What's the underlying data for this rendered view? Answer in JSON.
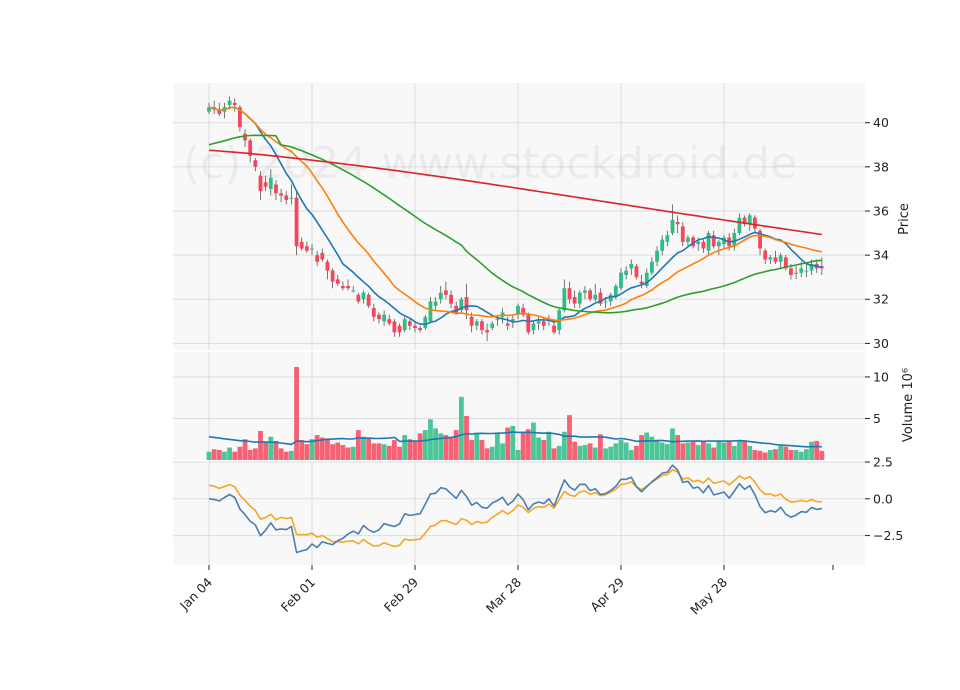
{
  "watermark": "(c) 2024 www.stockdroid.de",
  "colors": {
    "up": "#2ebd85",
    "down": "#f6465d",
    "ma_short": "#1f77b4",
    "ma_mid": "#ff7f0e",
    "ma_long": "#2ca02c",
    "ma_200": "#d62728",
    "volume_ma": "#1f77b4",
    "osc1": "#4a7eb0",
    "osc2": "#f5a623",
    "panel_bg": "#f8f8f8",
    "grid": "#dddddd"
  },
  "chart_data": {
    "type": "candlestick",
    "x_tick_labels": [
      "Jan 04",
      "Feb 01",
      "Feb 29",
      "Mar 28",
      "Apr 29",
      "May 28"
    ],
    "x_tick_index": [
      0,
      20,
      40,
      60,
      80,
      100
    ],
    "price_panel": {
      "ylabel": "Price",
      "ylim": [
        29.7,
        41.8
      ],
      "yticks": [
        30,
        32,
        34,
        36,
        38,
        40
      ],
      "ohlc": [
        [
          40.5,
          40.9,
          40.4,
          40.7
        ],
        [
          40.7,
          41.0,
          40.4,
          40.6
        ],
        [
          40.6,
          40.9,
          40.3,
          40.4
        ],
        [
          40.5,
          40.9,
          40.2,
          40.7
        ],
        [
          40.8,
          41.2,
          40.6,
          41.0
        ],
        [
          40.9,
          41.1,
          40.5,
          40.8
        ],
        [
          40.7,
          40.8,
          39.6,
          39.8
        ],
        [
          39.5,
          39.7,
          38.9,
          39.2
        ],
        [
          39.2,
          39.3,
          38.2,
          38.5
        ],
        [
          38.3,
          38.4,
          37.8,
          38.0
        ],
        [
          37.6,
          37.8,
          36.5,
          36.9
        ],
        [
          37.3,
          37.6,
          36.9,
          37.1
        ],
        [
          37.0,
          37.9,
          36.7,
          37.5
        ],
        [
          37.2,
          37.4,
          36.5,
          36.8
        ],
        [
          36.8,
          37.0,
          36.4,
          36.7
        ],
        [
          36.7,
          36.9,
          36.3,
          36.5
        ],
        [
          36.6,
          37.2,
          36.3,
          36.6
        ],
        [
          36.6,
          36.9,
          34.0,
          34.4
        ],
        [
          34.6,
          34.8,
          34.2,
          34.3
        ],
        [
          34.4,
          34.6,
          34.1,
          34.2
        ],
        [
          34.3,
          34.5,
          34.0,
          34.3
        ],
        [
          34.0,
          34.2,
          33.5,
          33.7
        ],
        [
          34.1,
          34.3,
          33.7,
          33.8
        ],
        [
          33.7,
          33.8,
          32.9,
          33.3
        ],
        [
          33.3,
          33.4,
          32.5,
          32.8
        ],
        [
          32.9,
          33.1,
          32.6,
          32.7
        ],
        [
          32.6,
          32.8,
          32.4,
          32.5
        ],
        [
          32.6,
          32.9,
          32.4,
          32.5
        ],
        [
          32.4,
          32.6,
          32.3,
          32.4
        ],
        [
          32.2,
          32.3,
          31.8,
          31.9
        ],
        [
          32.0,
          32.4,
          31.8,
          32.3
        ],
        [
          32.2,
          32.3,
          31.6,
          31.7
        ],
        [
          31.6,
          31.8,
          31.0,
          31.2
        ],
        [
          31.3,
          31.4,
          30.9,
          31.1
        ],
        [
          31.0,
          31.5,
          30.8,
          31.3
        ],
        [
          31.1,
          31.3,
          30.8,
          30.9
        ],
        [
          31.0,
          31.1,
          30.3,
          30.5
        ],
        [
          30.8,
          30.9,
          30.3,
          30.5
        ],
        [
          30.6,
          31.2,
          30.5,
          31.1
        ],
        [
          31.0,
          31.1,
          30.6,
          30.8
        ],
        [
          30.8,
          31.0,
          30.5,
          30.7
        ],
        [
          30.7,
          30.8,
          30.5,
          30.6
        ],
        [
          30.7,
          31.3,
          30.6,
          31.2
        ],
        [
          31.0,
          32.1,
          30.9,
          31.9
        ],
        [
          31.7,
          32.1,
          31.5,
          31.9
        ],
        [
          32.0,
          32.6,
          31.8,
          32.3
        ],
        [
          32.4,
          32.8,
          32.0,
          32.2
        ],
        [
          32.2,
          32.4,
          31.6,
          31.8
        ],
        [
          31.7,
          31.9,
          31.3,
          31.4
        ],
        [
          31.5,
          32.1,
          31.4,
          32.0
        ],
        [
          32.1,
          32.7,
          31.1,
          31.5
        ],
        [
          31.2,
          31.4,
          30.5,
          30.8
        ],
        [
          30.8,
          31.1,
          30.6,
          31.0
        ],
        [
          31.0,
          31.1,
          30.4,
          30.6
        ],
        [
          30.6,
          30.9,
          30.1,
          30.5
        ],
        [
          30.7,
          31.0,
          30.6,
          30.9
        ],
        [
          31.1,
          31.3,
          30.8,
          31.1
        ],
        [
          31.2,
          31.6,
          30.9,
          31.4
        ],
        [
          30.9,
          31.2,
          30.6,
          30.8
        ],
        [
          31.0,
          31.3,
          30.7,
          31.1
        ],
        [
          31.3,
          31.8,
          31.1,
          31.7
        ],
        [
          31.6,
          31.8,
          31.2,
          31.3
        ],
        [
          31.3,
          31.4,
          30.4,
          30.5
        ],
        [
          30.6,
          31.0,
          30.4,
          30.9
        ],
        [
          30.9,
          31.2,
          30.6,
          31.0
        ],
        [
          31.0,
          31.2,
          30.6,
          30.8
        ],
        [
          31.0,
          31.3,
          30.8,
          31.1
        ],
        [
          30.8,
          31.1,
          30.4,
          30.5
        ],
        [
          30.6,
          31.6,
          30.4,
          31.5
        ],
        [
          31.5,
          32.9,
          31.4,
          32.5
        ],
        [
          32.5,
          32.8,
          31.8,
          32.0
        ],
        [
          32.1,
          32.4,
          31.6,
          31.8
        ],
        [
          31.8,
          32.4,
          31.6,
          32.3
        ],
        [
          32.3,
          32.6,
          32.0,
          32.4
        ],
        [
          32.4,
          32.5,
          31.9,
          32.0
        ],
        [
          32.0,
          32.7,
          31.9,
          32.2
        ],
        [
          32.3,
          32.5,
          31.7,
          31.8
        ],
        [
          31.9,
          32.1,
          31.6,
          31.9
        ],
        [
          31.9,
          32.3,
          31.7,
          32.2
        ],
        [
          32.1,
          32.7,
          32.0,
          32.6
        ],
        [
          32.5,
          33.4,
          32.4,
          33.2
        ],
        [
          33.1,
          33.5,
          32.9,
          33.3
        ],
        [
          33.4,
          33.8,
          33.1,
          33.6
        ],
        [
          33.5,
          33.6,
          32.9,
          33.0
        ],
        [
          32.8,
          33.1,
          32.5,
          32.7
        ],
        [
          32.6,
          33.4,
          32.5,
          33.2
        ],
        [
          33.2,
          33.9,
          33.1,
          33.7
        ],
        [
          33.7,
          34.4,
          33.5,
          34.2
        ],
        [
          34.2,
          34.9,
          34.0,
          34.7
        ],
        [
          34.6,
          35.1,
          34.4,
          34.9
        ],
        [
          35.0,
          36.3,
          34.9,
          35.6
        ],
        [
          35.5,
          35.8,
          35.0,
          35.4
        ],
        [
          35.3,
          35.5,
          34.4,
          34.6
        ],
        [
          34.6,
          34.9,
          34.4,
          34.8
        ],
        [
          34.8,
          34.9,
          34.3,
          34.4
        ],
        [
          34.5,
          34.8,
          34.2,
          34.6
        ],
        [
          34.6,
          34.7,
          34.1,
          34.3
        ],
        [
          34.2,
          35.1,
          34.0,
          35.0
        ],
        [
          34.9,
          35.1,
          34.3,
          34.4
        ],
        [
          34.4,
          34.7,
          34.0,
          34.6
        ],
        [
          34.5,
          34.9,
          34.3,
          34.8
        ],
        [
          34.8,
          35.0,
          34.2,
          34.4
        ],
        [
          34.4,
          35.2,
          34.2,
          35.0
        ],
        [
          35.0,
          35.9,
          34.9,
          35.7
        ],
        [
          35.7,
          35.8,
          35.3,
          35.4
        ],
        [
          35.4,
          35.9,
          35.1,
          35.8
        ],
        [
          35.7,
          35.8,
          35.0,
          35.2
        ],
        [
          35.1,
          35.2,
          34.0,
          34.3
        ],
        [
          34.2,
          34.3,
          33.6,
          33.8
        ],
        [
          33.8,
          34.0,
          33.6,
          33.9
        ],
        [
          33.9,
          34.2,
          33.6,
          33.7
        ],
        [
          33.7,
          34.1,
          33.4,
          34.0
        ],
        [
          33.9,
          34.0,
          33.3,
          33.4
        ],
        [
          33.4,
          33.6,
          32.9,
          33.1
        ],
        [
          33.2,
          33.5,
          32.9,
          33.2
        ],
        [
          33.2,
          33.7,
          33.0,
          33.4
        ],
        [
          33.3,
          33.6,
          33.0,
          33.3
        ],
        [
          33.3,
          33.8,
          33.1,
          33.6
        ],
        [
          33.6,
          33.8,
          33.2,
          33.4
        ],
        [
          33.5,
          33.9,
          33.1,
          33.4
        ]
      ],
      "ma_lines": [
        {
          "key": "ma_short",
          "period": 10
        },
        {
          "key": "ma_mid",
          "period": 20
        },
        {
          "key": "ma_long",
          "period": 50
        },
        {
          "key": "ma_200",
          "period": 200
        }
      ]
    },
    "volume_panel": {
      "ylabel": "Volume  10⁶",
      "ylim": [
        0,
        13
      ],
      "yticks": [
        5,
        10
      ],
      "values": [
        1.0,
        1.3,
        1.2,
        1.0,
        1.5,
        1.0,
        1.6,
        2.5,
        1.2,
        1.4,
        3.5,
        2.2,
        2.8,
        2.3,
        1.4,
        1.0,
        1.1,
        11.2,
        2.4,
        1.9,
        2.5,
        3.0,
        2.7,
        2.6,
        1.9,
        2.1,
        1.8,
        1.5,
        1.6,
        3.6,
        2.8,
        2.7,
        2.0,
        2.0,
        1.9,
        1.7,
        2.4,
        1.6,
        3.0,
        2.5,
        2.2,
        3.2,
        3.6,
        4.9,
        3.8,
        3.2,
        3.0,
        2.7,
        3.6,
        7.6,
        5.3,
        2.4,
        3.3,
        2.4,
        1.4,
        1.6,
        3.2,
        2.0,
        3.9,
        4.1,
        1.2,
        3.4,
        3.7,
        4.5,
        2.7,
        2.4,
        3.4,
        1.4,
        1.7,
        3.4,
        5.4,
        2.2,
        1.7,
        1.8,
        2.0,
        1.5,
        3.1,
        1.4,
        1.6,
        2.0,
        2.4,
        2.1,
        1.2,
        1.7,
        3.0,
        3.3,
        2.8,
        2.4,
        2.1,
        1.9,
        3.8,
        3.0,
        2.0,
        2.1,
        2.2,
        1.8,
        2.2,
        2.0,
        1.5,
        2.2,
        2.1,
        2.3,
        1.7,
        2.3,
        2.3,
        1.7,
        1.2,
        1.1,
        0.9,
        1.2,
        1.3,
        1.7,
        1.6,
        1.2,
        1.2,
        1.0,
        1.3,
        2.2,
        2.3,
        1.1
      ],
      "ma_period": 20
    },
    "oscillator_panel": {
      "ylim": [
        -4.5,
        2.5
      ],
      "yticks": [
        2.5,
        0.0,
        -2.5
      ],
      "series1_color": "osc1",
      "series2_color": "osc2"
    }
  }
}
